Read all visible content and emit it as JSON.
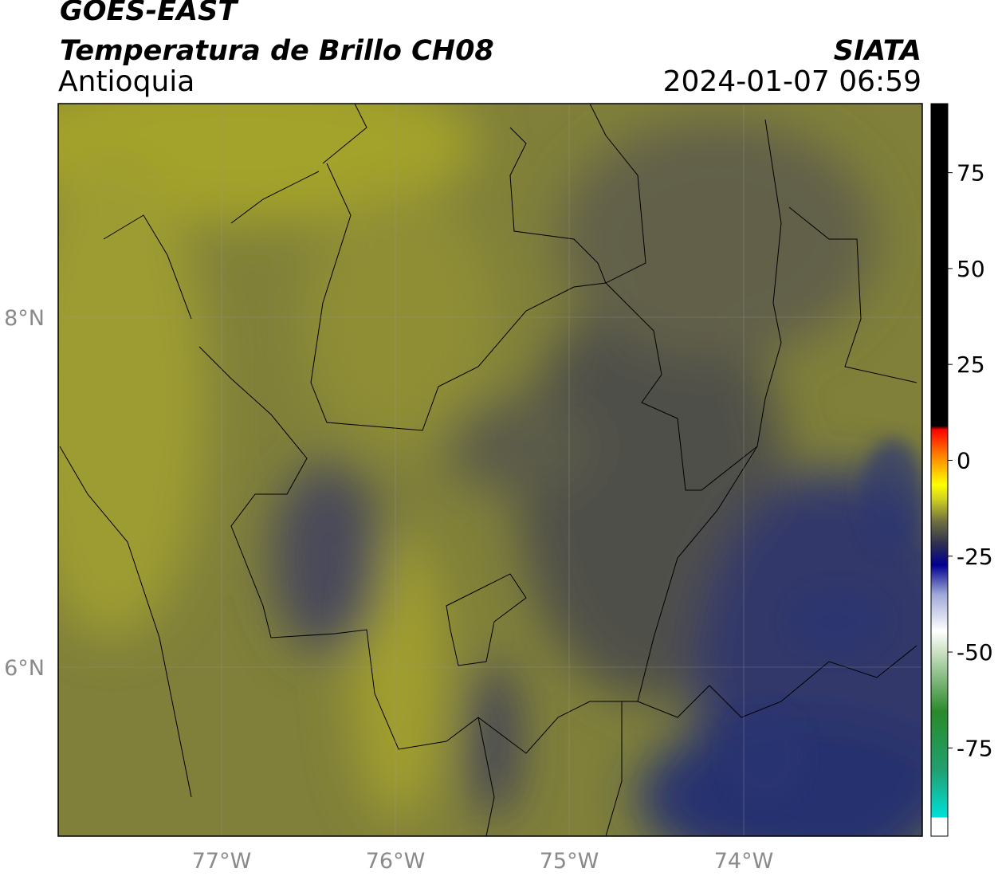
{
  "header": {
    "title": "GOES-EAST",
    "subtitle": "Temperatura de Brillo CH08",
    "region": "Antioquia",
    "source": "SIATA",
    "datetime": "2024-01-07 06:59"
  },
  "map": {
    "lat_labels": [
      "8°N",
      "6°N"
    ],
    "lon_labels": [
      "77°W",
      "76°W",
      "75°W",
      "74°W"
    ]
  },
  "colorbar": {
    "range": [
      -98,
      93
    ],
    "ticks": [
      75,
      50,
      25,
      0,
      -25,
      -50,
      -75
    ]
  }
}
